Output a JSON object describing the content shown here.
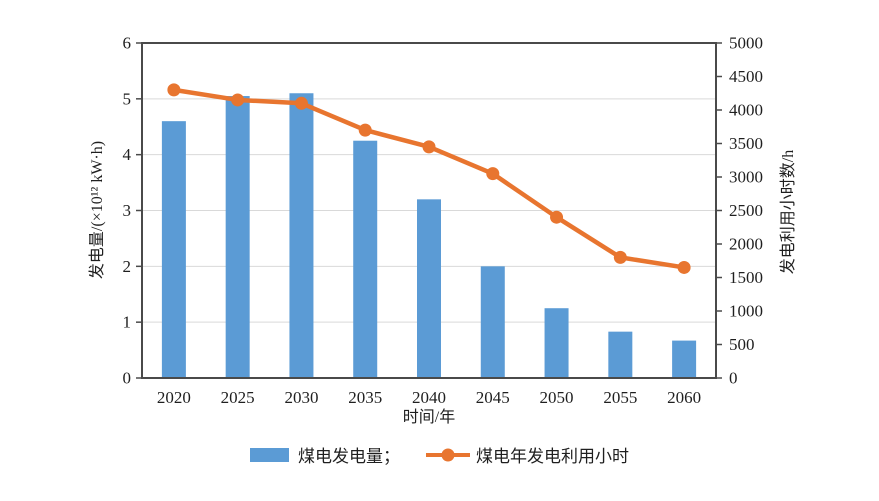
{
  "colors": {
    "bar": "#5B9BD5",
    "line": "#E8752F",
    "frame": "#4A4A4A",
    "grid": "#D9D9D9",
    "text": "#1F1F1F",
    "background": "#FFFFFF"
  },
  "chart_data": {
    "type": "bar",
    "subtype": "combo-bar-line-dual-axis",
    "categories": [
      "2020",
      "2025",
      "2030",
      "2035",
      "2040",
      "2045",
      "2050",
      "2055",
      "2060"
    ],
    "series": [
      {
        "name": "煤电发电量",
        "type": "bar",
        "axis": "left",
        "color": "#5B9BD5",
        "values": [
          4.6,
          5.05,
          5.1,
          4.25,
          3.2,
          2.0,
          1.25,
          0.83,
          0.67
        ]
      },
      {
        "name": "煤电年发电利用小时",
        "type": "line",
        "axis": "right",
        "color": "#E8752F",
        "values": [
          4300,
          4150,
          4100,
          3700,
          3450,
          3050,
          2400,
          1800,
          1650
        ]
      }
    ],
    "left_axis": {
      "label": "发电量/(×10¹² kW·h)",
      "min": 0,
      "max": 6,
      "step": 1
    },
    "right_axis": {
      "label": "发电利用小时数/h",
      "min": 0,
      "max": 5000,
      "step": 500
    },
    "x_axis": {
      "label": "时间/年"
    },
    "grid": true,
    "legend_position": "bottom",
    "legend": [
      {
        "label": "煤电发电量；",
        "swatch": "bar"
      },
      {
        "label": "煤电年发电利用小时",
        "swatch": "line"
      }
    ]
  }
}
